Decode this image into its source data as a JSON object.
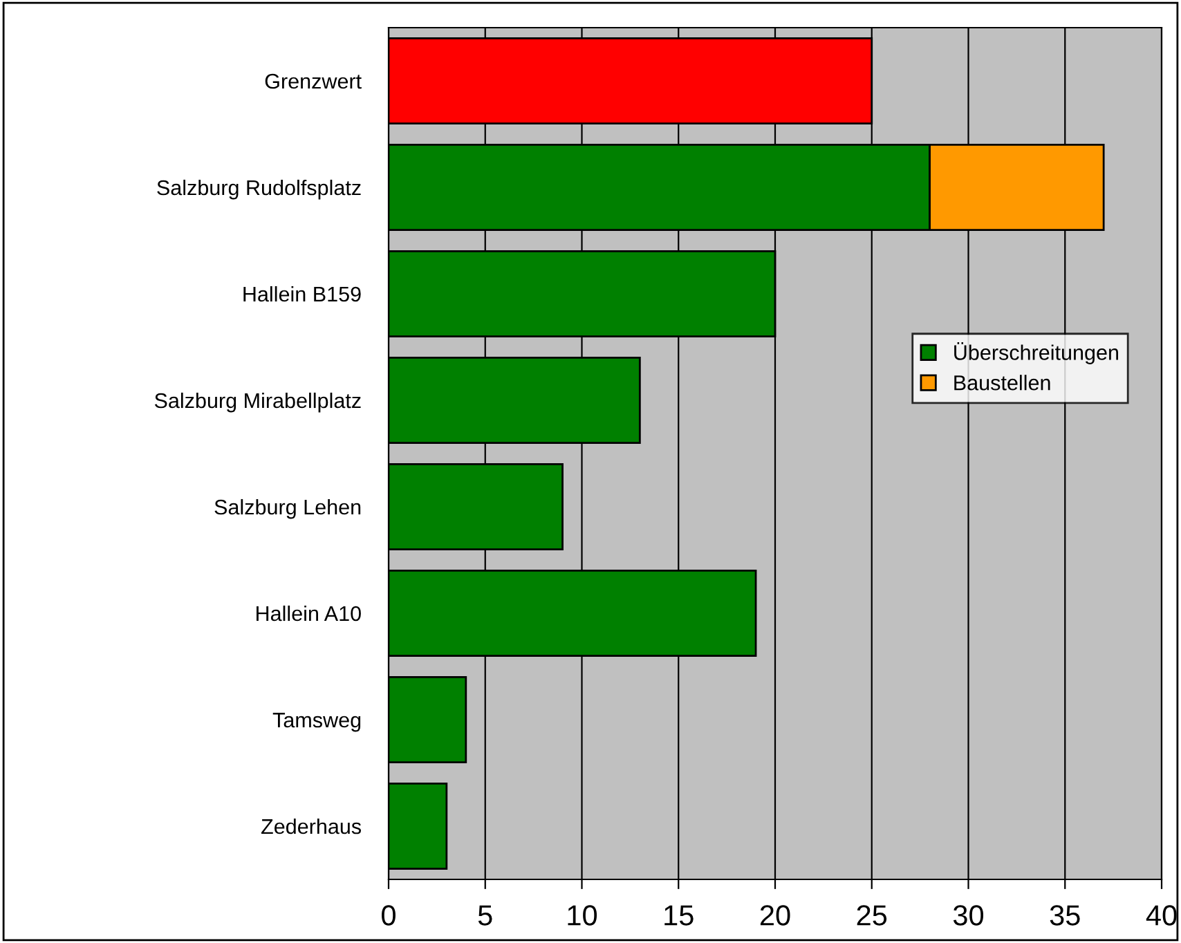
{
  "chart_data": {
    "type": "bar",
    "orientation": "horizontal",
    "stacked": true,
    "categories": [
      "Grenzwert",
      "Salzburg Rudolfsplatz",
      "Hallein B159",
      "Salzburg Mirabellplatz",
      "Salzburg Lehen",
      "Hallein A10",
      "Tamsweg",
      "Zederhaus"
    ],
    "series": [
      {
        "name": "Überschreitungen",
        "color": "#008000",
        "colors": [
          "#ff0000",
          "#008000",
          "#008000",
          "#008000",
          "#008000",
          "#008000",
          "#008000",
          "#008000"
        ],
        "values": [
          25,
          28,
          20,
          13,
          9,
          19,
          4,
          3
        ]
      },
      {
        "name": "Baustellen",
        "color": "#ff9900",
        "values": [
          null,
          9,
          null,
          null,
          null,
          null,
          null,
          null
        ]
      }
    ],
    "xlim": [
      0,
      40
    ],
    "xticks": [
      0,
      5,
      10,
      15,
      20,
      25,
      30,
      35,
      40
    ],
    "grid": "x",
    "legend": "right"
  }
}
